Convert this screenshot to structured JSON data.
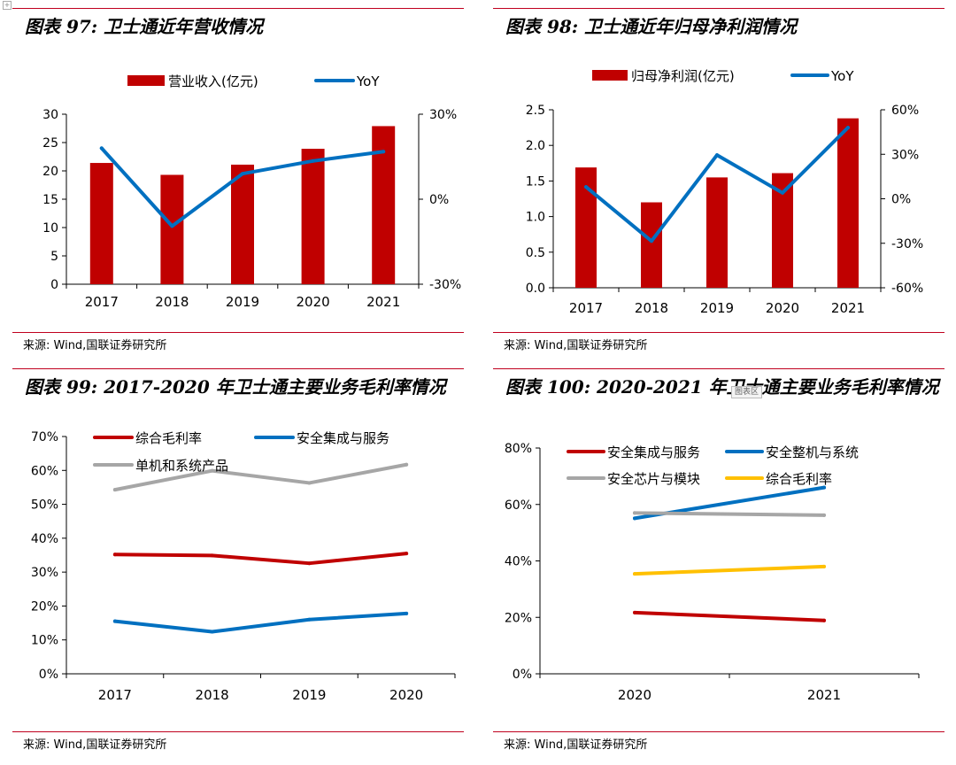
{
  "page": {
    "corner_glyph": "+",
    "watermark": "图表区"
  },
  "charts": [
    {
      "title": "图表 97:  卫士通近年营收情况",
      "source": "来源:  Wind,国联证券研究所",
      "chart_data": {
        "type": "bar+line",
        "categories": [
          "2017",
          "2018",
          "2019",
          "2020",
          "2021"
        ],
        "series": [
          {
            "name": "营业收入(亿元)",
            "kind": "bar",
            "axis": "left",
            "color": "#c00000",
            "values": [
              21.4,
              19.3,
              21.1,
              23.9,
              27.9
            ]
          },
          {
            "name": "YoY",
            "kind": "line",
            "axis": "right",
            "color": "#0070c0",
            "values": [
              18,
              -9.5,
              9,
              13.5,
              16.8
            ]
          }
        ],
        "left_axis": {
          "min": 0,
          "max": 30,
          "ticks": [
            "0",
            "5",
            "10",
            "15",
            "20",
            "25",
            "30"
          ]
        },
        "right_axis": {
          "min": -30,
          "max": 30,
          "ticks": [
            "-30%",
            "0%",
            "30%"
          ]
        }
      }
    },
    {
      "title": "图表 98:  卫士通近年归母净利润情况",
      "source": "来源:  Wind,国联证券研究所",
      "chart_data": {
        "type": "bar+line",
        "categories": [
          "2017",
          "2018",
          "2019",
          "2020",
          "2021"
        ],
        "series": [
          {
            "name": "归母净利润(亿元)",
            "kind": "bar",
            "axis": "left",
            "color": "#c00000",
            "values": [
              1.69,
              1.2,
              1.55,
              1.61,
              2.38
            ]
          },
          {
            "name": "YoY",
            "kind": "line",
            "axis": "right",
            "color": "#0070c0",
            "values": [
              8,
              -28.5,
              29.5,
              4,
              48
            ]
          }
        ],
        "left_axis": {
          "min": 0,
          "max": 2.5,
          "ticks": [
            "0.0",
            "0.5",
            "1.0",
            "1.5",
            "2.0",
            "2.5"
          ]
        },
        "right_axis": {
          "min": -60,
          "max": 60,
          "ticks": [
            "-60%",
            "-30%",
            "0%",
            "30%",
            "60%"
          ]
        }
      }
    },
    {
      "title": "图表 99:  2017-2020 年卫士通主要业务毛利率情况",
      "source": "来源:  Wind,国联证券研究所",
      "chart_data": {
        "type": "line",
        "categories": [
          "2017",
          "2018",
          "2019",
          "2020"
        ],
        "series": [
          {
            "name": "综合毛利率",
            "color": "#c00000",
            "values": [
              35.2,
              34.9,
              32.6,
              35.5
            ]
          },
          {
            "name": "安全集成与服务",
            "color": "#0070c0",
            "values": [
              15.5,
              12.4,
              16.0,
              17.8
            ]
          },
          {
            "name": "单机和系统产品",
            "color": "#a6a6a6",
            "values": [
              54.3,
              59.9,
              56.3,
              61.7
            ]
          }
        ],
        "left_axis": {
          "min": 0,
          "max": 70,
          "ticks": [
            "0%",
            "10%",
            "20%",
            "30%",
            "40%",
            "50%",
            "60%",
            "70%"
          ]
        }
      }
    },
    {
      "title": "图表 100:  2020-2021 年卫士通主要业务毛利率情况",
      "source": "来源:  Wind,国联证券研究所",
      "chart_data": {
        "type": "line",
        "categories": [
          "2020",
          "2021"
        ],
        "series": [
          {
            "name": "安全集成与服务",
            "color": "#c00000",
            "values": [
              21.7,
              18.9
            ]
          },
          {
            "name": "安全整机与系统",
            "color": "#0070c0",
            "values": [
              55.1,
              66.0
            ]
          },
          {
            "name": "安全芯片与模块",
            "color": "#a6a6a6",
            "values": [
              57.0,
              56.2
            ]
          },
          {
            "name": "综合毛利率",
            "color": "#ffc000",
            "values": [
              35.4,
              38.0
            ]
          }
        ],
        "left_axis": {
          "min": 0,
          "max": 80,
          "ticks": [
            "0%",
            "20%",
            "40%",
            "60%",
            "80%"
          ]
        }
      }
    }
  ]
}
